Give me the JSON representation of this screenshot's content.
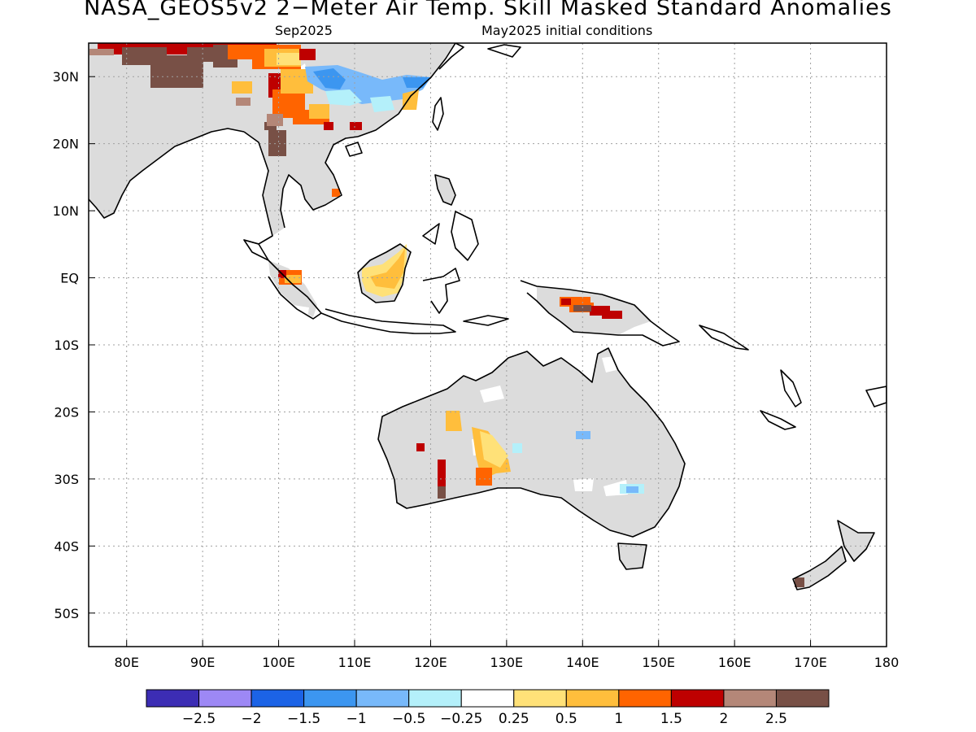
{
  "title": "NASA_GEOS5v2 2−Meter Air Temp. Skill Masked Standard Anomalies",
  "subtitle_left": "Sep2025",
  "subtitle_right": "May2025 initial conditions",
  "map": {
    "lon_range": [
      75,
      180
    ],
    "lat_range": [
      -55,
      35
    ],
    "grid": true,
    "lat_ticks": [
      {
        "lat": 30,
        "label": "30N"
      },
      {
        "lat": 20,
        "label": "20N"
      },
      {
        "lat": 10,
        "label": "10N"
      },
      {
        "lat": 0,
        "label": "EQ"
      },
      {
        "lat": -10,
        "label": "10S"
      },
      {
        "lat": -20,
        "label": "20S"
      },
      {
        "lat": -30,
        "label": "30S"
      },
      {
        "lat": -40,
        "label": "40S"
      },
      {
        "lat": -50,
        "label": "50S"
      }
    ],
    "lon_ticks": [
      {
        "lon": 80,
        "label": "80E"
      },
      {
        "lon": 90,
        "label": "90E"
      },
      {
        "lon": 100,
        "label": "100E"
      },
      {
        "lon": 110,
        "label": "110E"
      },
      {
        "lon": 120,
        "label": "120E"
      },
      {
        "lon": 130,
        "label": "130E"
      },
      {
        "lon": 140,
        "label": "140E"
      },
      {
        "lon": 150,
        "label": "150E"
      },
      {
        "lon": 160,
        "label": "160E"
      },
      {
        "lon": 170,
        "label": "170E"
      },
      {
        "lon": 180,
        "label": "180"
      }
    ],
    "masked_color": "#dcdcdc"
  },
  "colorbar": {
    "colors": [
      "#3c2db4",
      "#9d88f5",
      "#1c63e6",
      "#3c96f0",
      "#78b9fa",
      "#b4f0fa",
      "#ffffff",
      "#ffe178",
      "#ffbe3c",
      "#ff6400",
      "#be0000",
      "#b48778",
      "#785046"
    ],
    "labels": [
      "−2.5",
      "−2",
      "−1.5",
      "−1",
      "−0.5",
      "−0.25",
      "0.25",
      "0.5",
      "1",
      "1.5",
      "2",
      "2.5"
    ]
  }
}
